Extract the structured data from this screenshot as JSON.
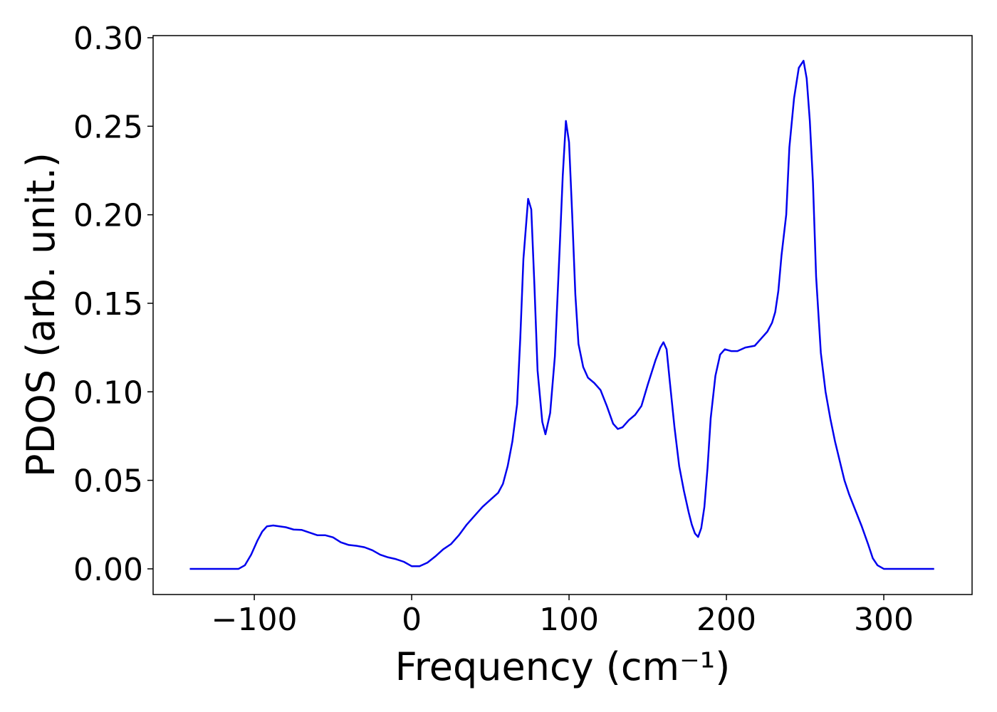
{
  "chart_data": {
    "type": "line",
    "xlabel": "Frequency (cm⁻¹)",
    "ylabel": "PDOS (arb. unit.)",
    "x": [
      -141,
      -110,
      -106,
      -102,
      -98,
      -95,
      -92,
      -88,
      -80,
      -75,
      -70,
      -65,
      -60,
      -55,
      -50,
      -45,
      -40,
      -35,
      -30,
      -25,
      -20,
      -15,
      -10,
      -5,
      0,
      5,
      10,
      15,
      20,
      25,
      30,
      35,
      40,
      45,
      50,
      55,
      58,
      61,
      64,
      67,
      69,
      71,
      74,
      76,
      78,
      80,
      83,
      85,
      88,
      91,
      94,
      96,
      98,
      100,
      102,
      104,
      106,
      109,
      112,
      116,
      120,
      124,
      128,
      131,
      134,
      138,
      142,
      146,
      150,
      155,
      158,
      160,
      162,
      164,
      167,
      170,
      173,
      176,
      178,
      180,
      182,
      184,
      186,
      188,
      190,
      193,
      196,
      199,
      203,
      207,
      212,
      218,
      222,
      226,
      229,
      231,
      233,
      235,
      238,
      240,
      243,
      246,
      249,
      251,
      253,
      255,
      257,
      260,
      263,
      266,
      269,
      272,
      275,
      278,
      282,
      286,
      290,
      293,
      296,
      300,
      332
    ],
    "series": [
      {
        "name": "PDOS",
        "color": "#0000ee",
        "values": [
          0,
          0,
          0.002,
          0.008,
          0.016,
          0.021,
          0.024,
          0.0245,
          0.0235,
          0.0222,
          0.022,
          0.0205,
          0.019,
          0.019,
          0.0178,
          0.015,
          0.0135,
          0.013,
          0.0122,
          0.0105,
          0.008,
          0.0065,
          0.0055,
          0.004,
          0.0015,
          0.0015,
          0.0035,
          0.007,
          0.011,
          0.014,
          0.019,
          0.025,
          0.03,
          0.035,
          0.039,
          0.043,
          0.048,
          0.058,
          0.072,
          0.093,
          0.13,
          0.175,
          0.209,
          0.203,
          0.16,
          0.112,
          0.083,
          0.076,
          0.088,
          0.12,
          0.18,
          0.222,
          0.253,
          0.241,
          0.2,
          0.155,
          0.127,
          0.114,
          0.108,
          0.105,
          0.101,
          0.092,
          0.082,
          0.079,
          0.08,
          0.084,
          0.087,
          0.092,
          0.104,
          0.118,
          0.125,
          0.128,
          0.124,
          0.106,
          0.08,
          0.058,
          0.044,
          0.032,
          0.025,
          0.02,
          0.018,
          0.023,
          0.035,
          0.057,
          0.085,
          0.109,
          0.121,
          0.124,
          0.123,
          0.123,
          0.125,
          0.126,
          0.13,
          0.134,
          0.139,
          0.145,
          0.157,
          0.177,
          0.2,
          0.238,
          0.266,
          0.283,
          0.287,
          0.277,
          0.253,
          0.218,
          0.165,
          0.122,
          0.1,
          0.085,
          0.072,
          0.061,
          0.05,
          0.042,
          0.033,
          0.024,
          0.014,
          0.006,
          0.002,
          0,
          0
        ]
      }
    ],
    "xlim": [
      -164.3,
      356.1
    ],
    "ylim": [
      -0.0145,
      0.3012
    ],
    "xticks": [
      {
        "value": -100,
        "label": "−100"
      },
      0,
      100,
      200,
      300
    ],
    "yticks": [
      {
        "value": 0,
        "label": "0.00"
      },
      {
        "value": 0.05,
        "label": "0.05"
      },
      {
        "value": 0.1,
        "label": "0.10"
      },
      {
        "value": 0.15,
        "label": "0.15"
      },
      {
        "value": 0.2,
        "label": "0.20"
      },
      {
        "value": 0.25,
        "label": "0.25"
      },
      {
        "value": 0.3,
        "label": "0.30"
      }
    ],
    "grid": false
  }
}
